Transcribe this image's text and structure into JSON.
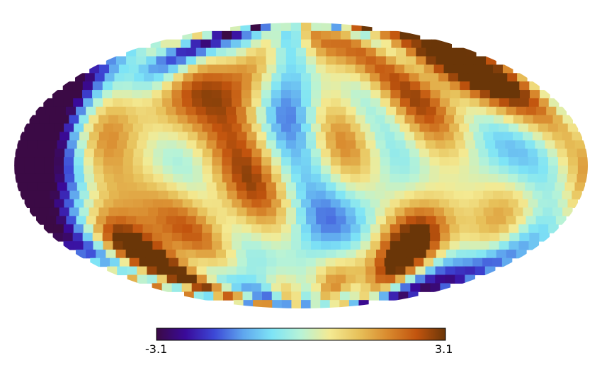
{
  "map": {
    "projection": "mollweide",
    "field": "random-gaussian-sky-map",
    "seed": 7
  },
  "colorbar": {
    "min_label": "-3.1",
    "max_label": "3.1",
    "min": -3.1,
    "max": 3.1,
    "colors": [
      "#3b0a45",
      "#3a0a9a",
      "#3c48d6",
      "#5fa6ee",
      "#7ee4f6",
      "#b8f3d6",
      "#f4ea92",
      "#e7c15a",
      "#d98a2e",
      "#c2540e",
      "#6a3608"
    ]
  }
}
